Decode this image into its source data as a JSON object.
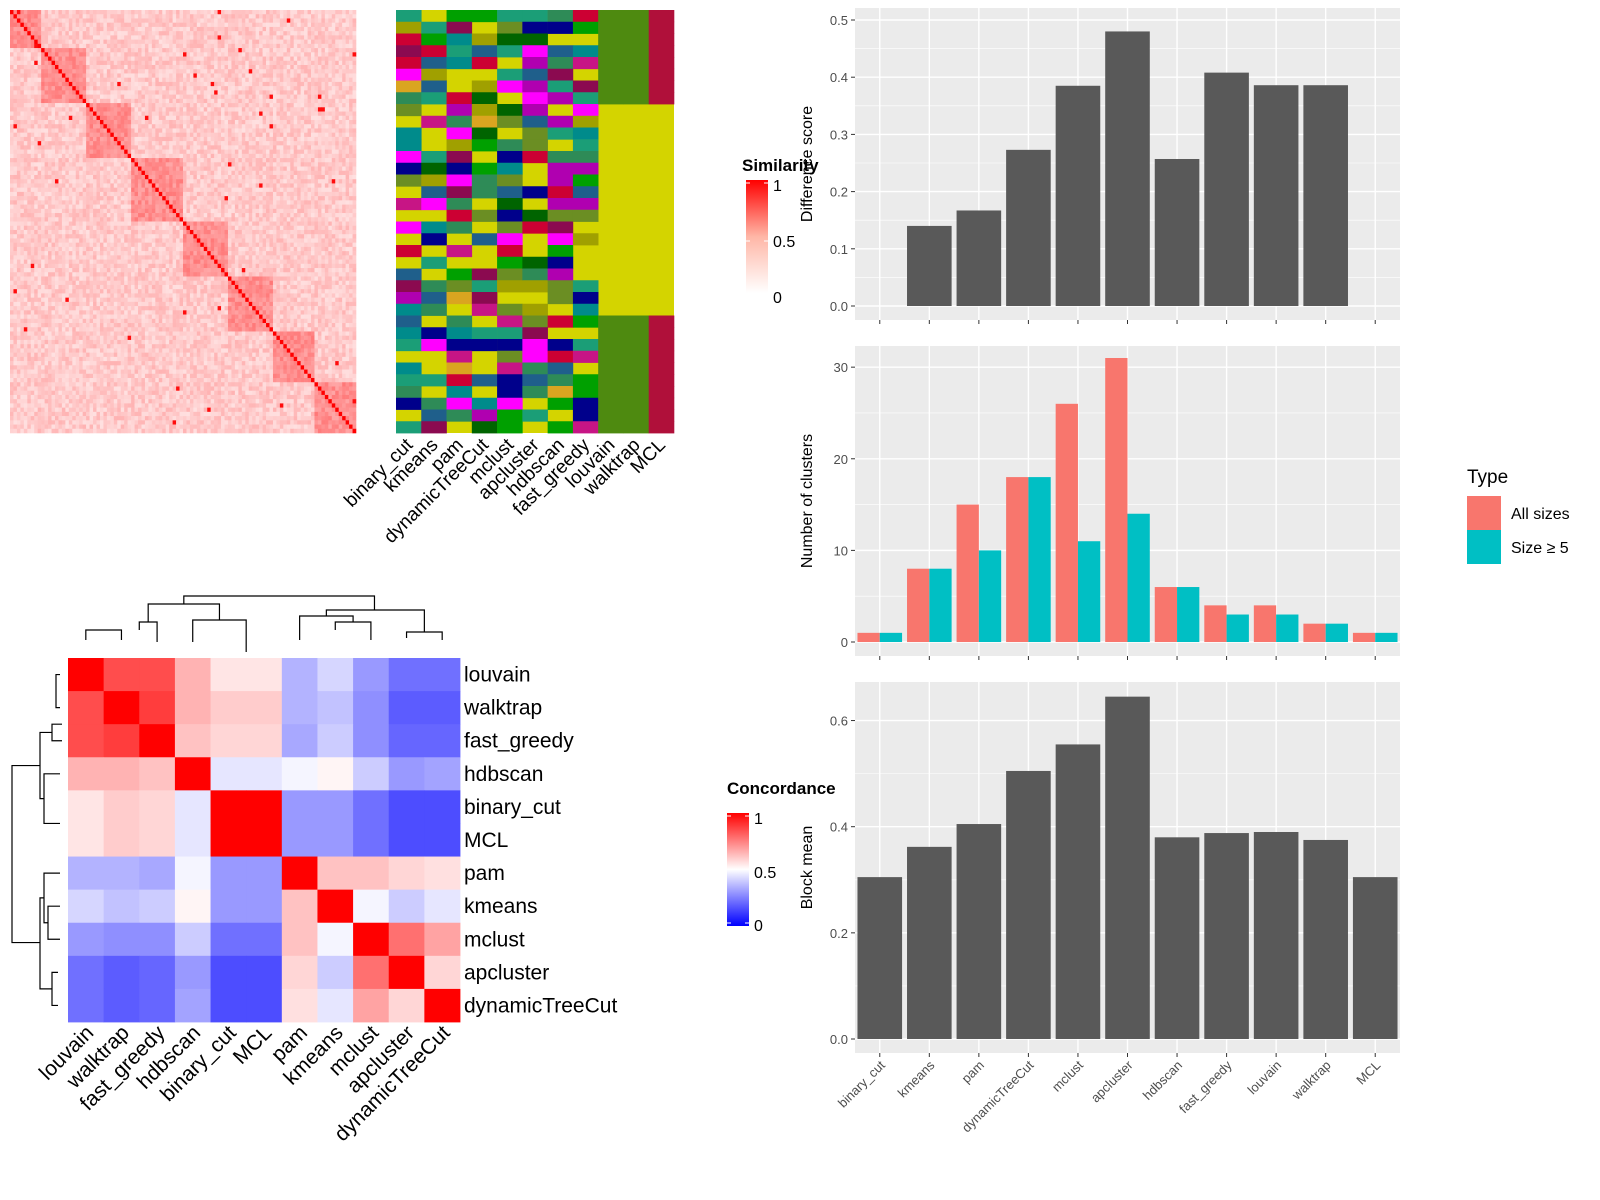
{
  "methods": [
    "binary_cut",
    "kmeans",
    "pam",
    "dynamicTreeCut",
    "mclust",
    "apcluster",
    "hdbscan",
    "fast_greedy",
    "louvain",
    "walktrap",
    "MCL"
  ],
  "similarity_panel": {
    "legend_title": "Similarity",
    "legend_ticks": [
      "1",
      "0.5",
      "0"
    ],
    "column_labels": [
      "binary_cut",
      "kmeans",
      "pam",
      "dynamicTreeCut",
      "mclust",
      "apcluster",
      "hdbscan",
      "fast_greedy",
      "louvain",
      "walktrap",
      "MCL"
    ]
  },
  "concordance_panel": {
    "legend_title": "Concordance",
    "legend_ticks": [
      "1",
      "0.5",
      "0"
    ],
    "order": [
      "louvain",
      "walktrap",
      "fast_greedy",
      "hdbscan",
      "binary_cut",
      "MCL",
      "pam",
      "kmeans",
      "mclust",
      "apcluster",
      "dynamicTreeCut"
    ]
  },
  "legend": {
    "title": "Type",
    "items": [
      {
        "label": "All sizes",
        "color": "#F8766D"
      },
      {
        "label": "Size ≥ 5",
        "color": "#00BFC4"
      }
    ]
  },
  "colors": {
    "bar": "#595959",
    "panel_bg": "#EBEBEB",
    "grid": "#FFFFFF",
    "red": "#FF0000",
    "blue": "#0000FF"
  },
  "chart_data": [
    {
      "type": "bar",
      "categories": [
        "binary_cut",
        "kmeans",
        "pam",
        "dynamicTreeCut",
        "mclust",
        "apcluster",
        "hdbscan",
        "fast_greedy",
        "louvain",
        "walktrap",
        "MCL"
      ],
      "values": [
        0,
        0.14,
        0.167,
        0.273,
        0.385,
        0.48,
        0.257,
        0.408,
        0.386,
        0.386,
        0
      ],
      "ylabel": "Difference score",
      "xlabel": "",
      "ylim": [
        0,
        0.5
      ],
      "yticks": [
        "0.0",
        "0.1",
        "0.2",
        "0.3",
        "0.4",
        "0.5"
      ],
      "grid": true
    },
    {
      "type": "bar",
      "categories": [
        "binary_cut",
        "kmeans",
        "pam",
        "dynamicTreeCut",
        "mclust",
        "apcluster",
        "hdbscan",
        "fast_greedy",
        "louvain",
        "walktrap",
        "MCL"
      ],
      "series": [
        {
          "name": "All sizes",
          "values": [
            1,
            8,
            15,
            18,
            26,
            31,
            6,
            4,
            4,
            2,
            1
          ]
        },
        {
          "name": "Size ≥ 5",
          "values": [
            1,
            8,
            10,
            18,
            11,
            14,
            6,
            3,
            3,
            2,
            1
          ]
        }
      ],
      "ylabel": "Number of clusters",
      "xlabel": "",
      "ylim": [
        0,
        31
      ],
      "yticks": [
        "0",
        "10",
        "20",
        "30"
      ],
      "legend_position": "right",
      "grid": true
    },
    {
      "type": "bar",
      "categories": [
        "binary_cut",
        "kmeans",
        "pam",
        "dynamicTreeCut",
        "mclust",
        "apcluster",
        "hdbscan",
        "fast_greedy",
        "louvain",
        "walktrap",
        "MCL"
      ],
      "values": [
        0.305,
        0.362,
        0.405,
        0.505,
        0.555,
        0.645,
        0.38,
        0.388,
        0.39,
        0.375,
        0.305
      ],
      "ylabel": "Block mean",
      "xlabel": "",
      "ylim": [
        0,
        0.65
      ],
      "yticks": [
        "0.0",
        "0.2",
        "0.4",
        "0.6"
      ],
      "grid": true
    },
    {
      "type": "heatmap",
      "title": "",
      "rows": [
        "louvain",
        "walktrap",
        "fast_greedy",
        "hdbscan",
        "binary_cut",
        "MCL",
        "pam",
        "kmeans",
        "mclust",
        "apcluster",
        "dynamicTreeCut"
      ],
      "cols": [
        "louvain",
        "walktrap",
        "fast_greedy",
        "hdbscan",
        "binary_cut",
        "MCL",
        "pam",
        "kmeans",
        "mclust",
        "apcluster",
        "dynamicTreeCut"
      ],
      "values": [
        [
          1.0,
          0.85,
          0.85,
          0.65,
          0.55,
          0.55,
          0.35,
          0.42,
          0.3,
          0.22,
          0.22
        ],
        [
          0.85,
          1.0,
          0.88,
          0.65,
          0.6,
          0.6,
          0.35,
          0.38,
          0.28,
          0.18,
          0.18
        ],
        [
          0.85,
          0.88,
          1.0,
          0.62,
          0.58,
          0.58,
          0.33,
          0.4,
          0.28,
          0.2,
          0.2
        ],
        [
          0.65,
          0.65,
          0.62,
          1.0,
          0.45,
          0.45,
          0.48,
          0.52,
          0.4,
          0.3,
          0.32
        ],
        [
          0.55,
          0.6,
          0.58,
          0.45,
          1.0,
          1.0,
          0.3,
          0.3,
          0.22,
          0.15,
          0.15
        ],
        [
          0.55,
          0.6,
          0.58,
          0.45,
          1.0,
          1.0,
          0.3,
          0.3,
          0.22,
          0.15,
          0.15
        ],
        [
          0.35,
          0.35,
          0.33,
          0.48,
          0.3,
          0.3,
          1.0,
          0.62,
          0.62,
          0.58,
          0.56
        ],
        [
          0.42,
          0.38,
          0.4,
          0.52,
          0.3,
          0.3,
          0.62,
          1.0,
          0.48,
          0.4,
          0.45
        ],
        [
          0.3,
          0.28,
          0.28,
          0.4,
          0.22,
          0.22,
          0.62,
          0.48,
          1.0,
          0.78,
          0.68
        ],
        [
          0.22,
          0.18,
          0.2,
          0.3,
          0.15,
          0.15,
          0.58,
          0.4,
          0.78,
          1.0,
          0.58
        ],
        [
          0.22,
          0.18,
          0.2,
          0.32,
          0.15,
          0.15,
          0.56,
          0.45,
          0.68,
          0.58,
          1.0
        ]
      ],
      "range": [
        0,
        1
      ]
    }
  ]
}
